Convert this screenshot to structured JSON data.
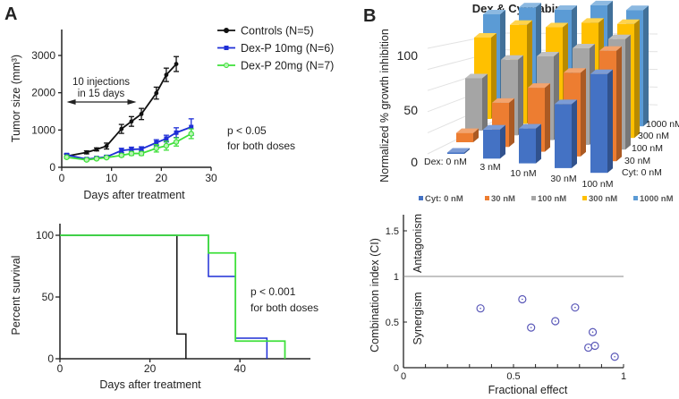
{
  "panels": {
    "a_label": "A",
    "b_label": "B"
  },
  "chart_data": [
    {
      "type": "line",
      "xlabel": "Days after treatment",
      "ylabel": "Tumor size (mm³)",
      "xlim": [
        0,
        30
      ],
      "ylim": [
        0,
        3000
      ],
      "xticks": [
        0,
        10,
        20,
        30
      ],
      "yticks": [
        0,
        1000,
        2000,
        3000
      ],
      "legend_position": "top-right, outside",
      "annotations": {
        "arrow_label_1": "10 injections",
        "arrow_label_2": "in 15 days",
        "arrow_range_days": [
          1,
          15
        ],
        "p_value": "p < 0.05",
        "p_note": "for both doses"
      },
      "series": [
        {
          "name": "Controls (N=5)",
          "color": "#111111",
          "marker": "circle",
          "x": [
            1,
            5,
            7,
            9,
            12,
            14,
            16,
            19,
            21,
            23
          ],
          "y": [
            300,
            400,
            480,
            570,
            1030,
            1230,
            1430,
            1990,
            2480,
            2770
          ],
          "err": [
            50,
            40,
            40,
            80,
            120,
            130,
            150,
            160,
            180,
            200
          ]
        },
        {
          "name": "Dex-P 10mg (N=6)",
          "color": "#1f2fd6",
          "marker": "square",
          "x": [
            1,
            5,
            7,
            9,
            12,
            14,
            16,
            19,
            21,
            23,
            26
          ],
          "y": [
            330,
            220,
            250,
            280,
            450,
            480,
            490,
            660,
            770,
            930,
            1080
          ],
          "err": [
            40,
            30,
            30,
            40,
            60,
            60,
            60,
            80,
            90,
            130,
            220
          ]
        },
        {
          "name": "Dex-P 20mg (N=7)",
          "color": "#3ee03a",
          "marker": "circle-open",
          "x": [
            1,
            5,
            7,
            9,
            12,
            14,
            16,
            19,
            21,
            23,
            26
          ],
          "y": [
            270,
            200,
            230,
            260,
            320,
            370,
            370,
            510,
            580,
            680,
            900
          ],
          "err": [
            30,
            30,
            30,
            30,
            40,
            50,
            50,
            100,
            120,
            110,
            130
          ]
        }
      ]
    },
    {
      "type": "line",
      "subtype": "step survival",
      "xlabel": "Days after treatment",
      "ylabel": "Percent survival",
      "xlim": [
        0,
        55
      ],
      "ylim": [
        0,
        100
      ],
      "xticks": [
        0,
        20,
        40
      ],
      "yticks": [
        0,
        50,
        100
      ],
      "annotations": {
        "p_value": "p < 0.001",
        "p_note": "for both doses"
      },
      "series": [
        {
          "color": "#111111",
          "x": [
            0,
            26,
            26,
            28,
            28
          ],
          "y": [
            100,
            100,
            20,
            20,
            0
          ]
        },
        {
          "color": "#1f2fd6",
          "x": [
            0,
            33,
            33,
            39,
            39,
            46,
            46
          ],
          "y": [
            100,
            100,
            66.7,
            66.7,
            16.7,
            16.7,
            0
          ]
        },
        {
          "color": "#3ee03a",
          "x": [
            0,
            33,
            33,
            39,
            39,
            50,
            50
          ],
          "y": [
            100,
            100,
            85.7,
            85.7,
            14.3,
            14.3,
            0
          ]
        }
      ]
    },
    {
      "type": "bar",
      "subtype": "3d",
      "title": "Dex & Cytarabin",
      "ylabel": "Normalized % growth inhibition",
      "zticks": [
        0,
        50,
        100
      ],
      "ylim": [
        0,
        100
      ],
      "categories": [
        "Dex: 0 nM",
        "3 nM",
        "10 nM",
        "30 nM",
        "100 nM"
      ],
      "depth_labels": [
        "Cyt: 0 nM",
        "30 nM",
        "100 nM",
        "300 nM",
        "1000 nM"
      ],
      "legend_position": "bottom",
      "series": [
        {
          "name": "Cyt: 0 nM",
          "color": "#4472c4",
          "values": [
            0,
            25,
            30,
            55,
            85
          ]
        },
        {
          "name": "30 nM",
          "color": "#ed7d31",
          "values": [
            8,
            38,
            55,
            72,
            95
          ]
        },
        {
          "name": "100 nM",
          "color": "#a5a5a5",
          "values": [
            45,
            65,
            72,
            83,
            95
          ]
        },
        {
          "name": "300 nM",
          "color": "#ffc000",
          "values": [
            70,
            85,
            87,
            95,
            98
          ]
        },
        {
          "name": "1000 nM",
          "color": "#5b9bd5",
          "values": [
            80,
            90,
            92,
            100,
            100
          ]
        }
      ]
    },
    {
      "type": "scatter",
      "xlabel": "Fractional effect",
      "ylabel": "Combination index (CI)",
      "xlim": [
        0,
        1
      ],
      "ylim": [
        0,
        1.6
      ],
      "xticks": [
        0,
        0.5,
        1
      ],
      "yticks": [
        0,
        0.5,
        1,
        1.5
      ],
      "reference_line_y": 1,
      "region_labels": {
        "below": "Synergism",
        "above": "Antagonism"
      },
      "marker_color": "#5a58b8",
      "points": {
        "x": [
          0.35,
          0.54,
          0.58,
          0.69,
          0.78,
          0.86,
          0.84,
          0.87,
          0.96
        ],
        "y": [
          0.65,
          0.75,
          0.44,
          0.51,
          0.66,
          0.39,
          0.22,
          0.24,
          0.12
        ]
      }
    }
  ]
}
